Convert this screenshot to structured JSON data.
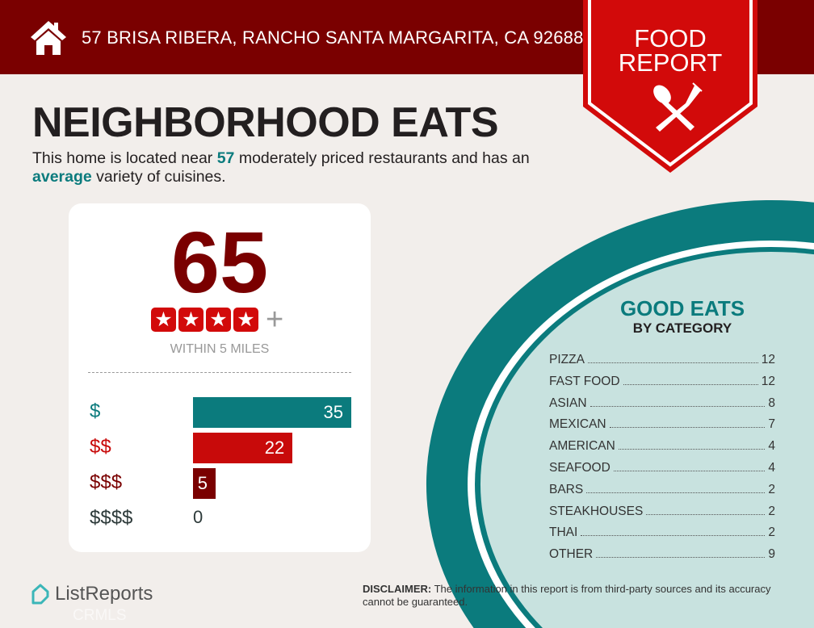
{
  "header": {
    "address": "57 BRISA RIBERA, RANCHO SANTA MARGARITA, CA 92688",
    "badge_line1": "FOOD",
    "badge_line2": "REPORT"
  },
  "title": "NEIGHBORHOOD EATS",
  "summary": {
    "part1": "This home is located near ",
    "count": "57",
    "part2": " moderately priced restaurants and has an ",
    "variety": "average",
    "part3": " variety of cuisines."
  },
  "score_card": {
    "score": "65",
    "stars": 4,
    "stars_plus": "+",
    "within": "WITHIN 5 MILES",
    "price_tiers": [
      {
        "label": "$",
        "value": 35,
        "color": "#0b7b7d"
      },
      {
        "label": "$$",
        "value": 22,
        "color": "#c80a0a"
      },
      {
        "label": "$$$",
        "value": 5,
        "color": "#7a0000"
      },
      {
        "label": "$$$$",
        "value": 0,
        "color": "#2d3a3a"
      }
    ]
  },
  "good_eats": {
    "title": "GOOD EATS",
    "subtitle": "BY CATEGORY",
    "categories": [
      {
        "name": "PIZZA",
        "count": "12"
      },
      {
        "name": "FAST FOOD",
        "count": "12"
      },
      {
        "name": "ASIAN",
        "count": "8"
      },
      {
        "name": "MEXICAN",
        "count": "7"
      },
      {
        "name": "AMERICAN",
        "count": "4"
      },
      {
        "name": "SEAFOOD",
        "count": "4"
      },
      {
        "name": "BARS",
        "count": "2"
      },
      {
        "name": "STEAKHOUSES",
        "count": "2"
      },
      {
        "name": "THAI",
        "count": "2"
      },
      {
        "name": "OTHER",
        "count": "9"
      }
    ]
  },
  "footer": {
    "logo": "ListReports",
    "disclaimer_label": "DISCLAIMER:",
    "disclaimer_text": " The information in this report is from third-party sources and its accuracy cannot be guaranteed.",
    "watermark": "CRMLS"
  },
  "colors": {
    "header": "#7a0000",
    "badge": "#d20a0a",
    "accent": "#0b7b7d",
    "circle_fill": "#c8e2df"
  }
}
